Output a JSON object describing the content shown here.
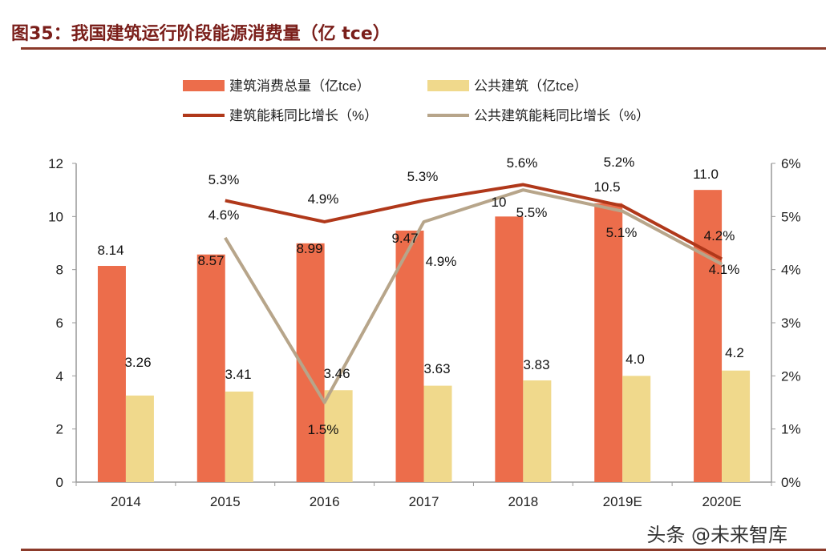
{
  "title": "图35：我国建筑运行阶段能源消费量（亿 tce）",
  "watermark": "头条 @未来智库",
  "chart_data": {
    "type": "bar+line",
    "categories": [
      "2014",
      "2015",
      "2016",
      "2017",
      "2018",
      "2019E",
      "2020E"
    ],
    "bar_series": [
      {
        "name": "建筑消费总量（亿tce）",
        "color": "#ec6d4b",
        "values": [
          8.14,
          8.57,
          8.99,
          9.47,
          10,
          10.5,
          11.0
        ],
        "labels": [
          "8.14",
          "8.57",
          "8.99",
          "9.47",
          "10",
          "10.5",
          "11.0"
        ]
      },
      {
        "name": "公共建筑（亿tce）",
        "color": "#f0d98c",
        "values": [
          3.26,
          3.41,
          3.46,
          3.63,
          3.83,
          4.0,
          4.2
        ],
        "labels": [
          "3.26",
          "3.41",
          "3.46",
          "3.63",
          "3.83",
          "4.0",
          "4.2"
        ]
      }
    ],
    "line_series": [
      {
        "name": "建筑能耗同比增长（%）",
        "color": "#b0381a",
        "values": [
          null,
          5.3,
          4.9,
          5.3,
          5.6,
          5.2,
          4.2
        ],
        "labels": [
          "",
          "5.3%",
          "4.9%",
          "5.3%",
          "5.6%",
          "5.2%",
          "4.2%"
        ]
      },
      {
        "name": "公共建筑能耗同比增长（%）",
        "color": "#b7a58a",
        "values": [
          null,
          4.6,
          1.5,
          4.9,
          5.5,
          5.1,
          4.1
        ],
        "labels": [
          "",
          "4.6%",
          "1.5%",
          "4.9%",
          "5.5%",
          "5.1%",
          "4.1%"
        ]
      }
    ],
    "y_left": {
      "range": [
        0,
        12
      ],
      "ticks": [
        "0",
        "2",
        "4",
        "6",
        "8",
        "10",
        "12"
      ]
    },
    "y_right": {
      "range": [
        0,
        6
      ],
      "ticks": [
        "0%",
        "1%",
        "2%",
        "3%",
        "4%",
        "5%",
        "6%"
      ]
    },
    "legend": "top",
    "grid": false
  }
}
